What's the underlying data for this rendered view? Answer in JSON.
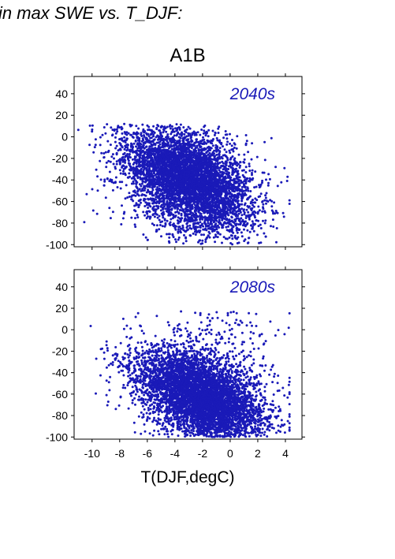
{
  "header": {
    "title": "in max SWE vs. T_DJF:"
  },
  "scenario_label": "A1B",
  "colors": {
    "points": "#1a1ab8",
    "axis": "#000000"
  },
  "chart_data": [
    {
      "type": "scatter",
      "panel_label": "2040s",
      "xlim": [
        -11.3,
        5.2
      ],
      "ylim": [
        -102,
        56
      ],
      "xticks": [
        -10,
        -8,
        -6,
        -4,
        -2,
        0,
        2,
        4
      ],
      "yticks": [
        40,
        20,
        0,
        -20,
        -40,
        -60,
        -80,
        -100
      ],
      "cloud": {
        "x_mean": -3.0,
        "x_sd": 2.3,
        "y_mean": -40,
        "y_sd": 22,
        "slope": -4.5,
        "n": 5500,
        "y_max": 12,
        "y_min": -100
      }
    },
    {
      "type": "scatter",
      "panel_label": "2080s",
      "xlim": [
        -11.3,
        5.2
      ],
      "ylim": [
        -102,
        56
      ],
      "xticks": [
        -10,
        -8,
        -6,
        -4,
        -2,
        0,
        2,
        4
      ],
      "yticks": [
        40,
        20,
        0,
        -20,
        -40,
        -60,
        -80,
        -100
      ],
      "cloud": {
        "x_mean": -2.2,
        "x_sd": 2.3,
        "y_mean": -62,
        "y_sd": 20,
        "slope": -4.5,
        "n": 5500,
        "y_max": 18,
        "y_min": -100
      }
    }
  ],
  "xlabel": "T(DJF,degC)"
}
